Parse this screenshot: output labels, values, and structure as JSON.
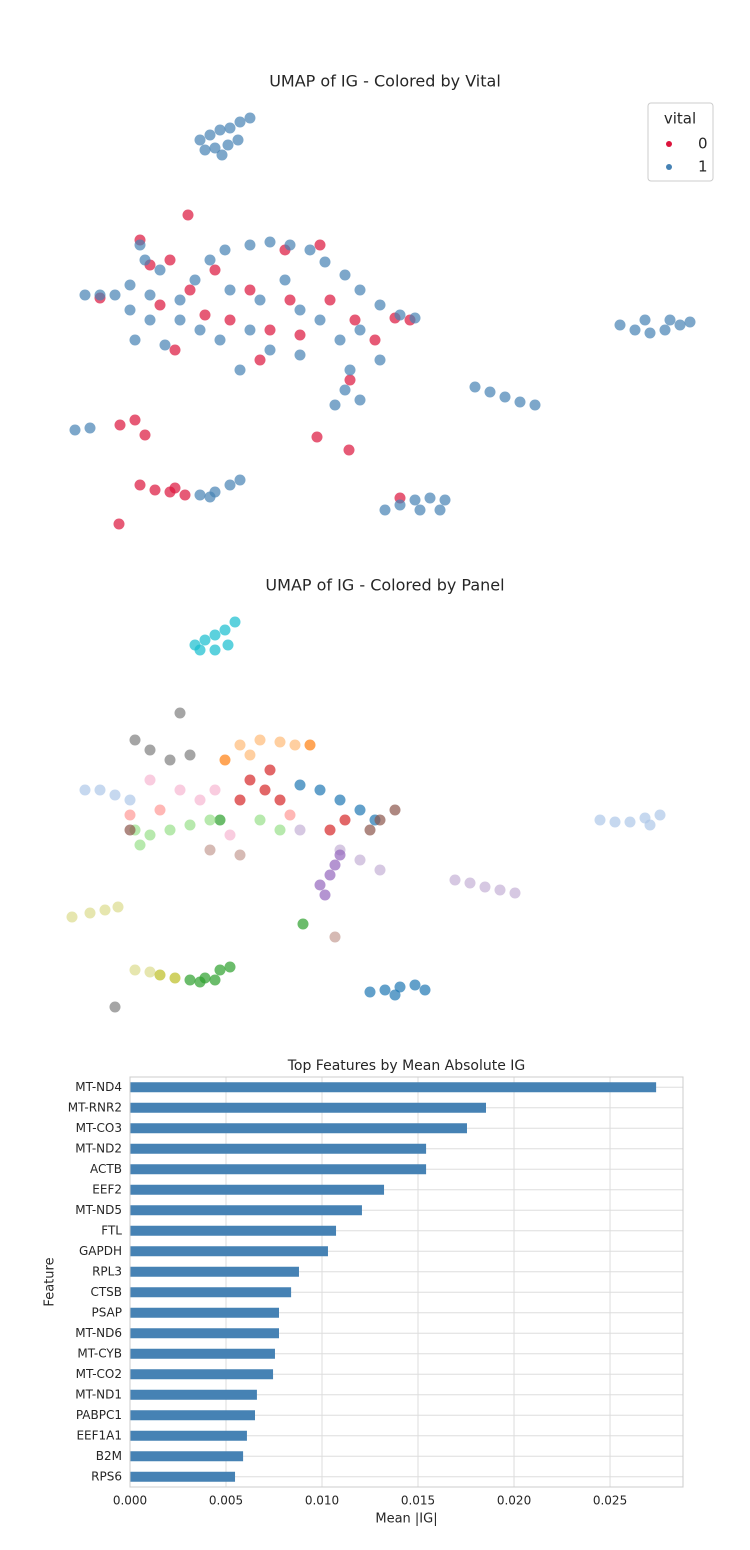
{
  "chart_data": [
    {
      "type": "scatter",
      "title": "UMAP of IG - Colored by Vital",
      "legend_title": "vital",
      "legend": "upper right",
      "xlim": [
        60,
        700
      ],
      "ylim": [
        550,
        100
      ],
      "series": [
        {
          "name": "0",
          "color": "#dc143c",
          "x": [
            188,
            140,
            150,
            170,
            190,
            205,
            175,
            230,
            250,
            270,
            290,
            285,
            320,
            300,
            330,
            355,
            375,
            395,
            410,
            260,
            350,
            215,
            160,
            100,
            120,
            135,
            145,
            317,
            349,
            140,
            155,
            170,
            185,
            175,
            400,
            119
          ],
          "y": [
            215,
            240,
            265,
            260,
            290,
            315,
            350,
            320,
            290,
            330,
            300,
            250,
            245,
            335,
            300,
            320,
            340,
            318,
            320,
            360,
            380,
            270,
            305,
            298,
            425,
            420,
            435,
            437,
            450,
            485,
            490,
            492,
            495,
            488,
            498,
            524
          ]
        },
        {
          "name": "1",
          "color": "#4682b4",
          "x": [
            200,
            210,
            220,
            230,
            240,
            250,
            205,
            215,
            228,
            238,
            222,
            85,
            100,
            115,
            130,
            145,
            140,
            160,
            150,
            135,
            165,
            180,
            195,
            210,
            225,
            250,
            270,
            290,
            310,
            325,
            345,
            360,
            380,
            400,
            415,
            230,
            260,
            285,
            300,
            320,
            250,
            270,
            300,
            340,
            360,
            220,
            240,
            350,
            345,
            360,
            335,
            380,
            200,
            180,
            130,
            150,
            620,
            635,
            650,
            665,
            680,
            690,
            645,
            670,
            475,
            490,
            505,
            520,
            535,
            75,
            90,
            200,
            215,
            230,
            240,
            210,
            385,
            400,
            415,
            430,
            445,
            420,
            440
          ],
          "y": [
            140,
            135,
            130,
            128,
            122,
            118,
            150,
            148,
            145,
            140,
            155,
            295,
            295,
            295,
            285,
            260,
            245,
            270,
            320,
            340,
            345,
            300,
            280,
            260,
            250,
            245,
            242,
            245,
            250,
            262,
            275,
            290,
            305,
            315,
            318,
            290,
            300,
            280,
            310,
            320,
            330,
            350,
            355,
            340,
            330,
            340,
            370,
            370,
            390,
            400,
            405,
            360,
            330,
            320,
            310,
            295,
            325,
            330,
            333,
            330,
            325,
            322,
            320,
            320,
            387,
            392,
            397,
            402,
            405,
            430,
            428,
            495,
            492,
            485,
            480,
            497,
            510,
            505,
            500,
            498,
            500,
            510,
            510
          ]
        }
      ]
    },
    {
      "type": "scatter",
      "title": "UMAP of IG - Colored by Panel",
      "xlim": [
        60,
        700
      ],
      "ylim": [
        550,
        100
      ],
      "series": [
        {
          "color": "#17becf",
          "x": [
            195,
            205,
            215,
            225,
            235,
            200,
            215,
            228
          ],
          "y": [
            150,
            145,
            140,
            135,
            127,
            155,
            155,
            150
          ]
        },
        {
          "color": "#aec7e8",
          "x": [
            600,
            615,
            630,
            645,
            660,
            650,
            85,
            100,
            115,
            130
          ],
          "y": [
            325,
            327,
            327,
            323,
            320,
            330,
            295,
            295,
            300,
            305
          ]
        },
        {
          "color": "#c5b0d5",
          "x": [
            455,
            470,
            485,
            500,
            515,
            340,
            360,
            380,
            300
          ],
          "y": [
            385,
            388,
            392,
            395,
            398,
            355,
            365,
            375,
            335
          ]
        },
        {
          "color": "#dbdb8d",
          "x": [
            72,
            90,
            105,
            118,
            135,
            150
          ],
          "y": [
            422,
            418,
            415,
            412,
            475,
            477
          ]
        },
        {
          "color": "#bcbd22",
          "x": [
            160,
            175
          ],
          "y": [
            480,
            483
          ]
        },
        {
          "color": "#2ca02c",
          "x": [
            190,
            205,
            220,
            230,
            200,
            215,
            303,
            220
          ],
          "y": [
            485,
            483,
            475,
            472,
            487,
            485,
            429,
            325
          ]
        },
        {
          "color": "#1f77b4",
          "x": [
            370,
            385,
            400,
            415,
            425,
            395,
            300,
            320,
            340,
            360,
            375
          ],
          "y": [
            497,
            495,
            492,
            490,
            495,
            500,
            290,
            295,
            305,
            315,
            325
          ]
        },
        {
          "color": "#7f7f7f",
          "x": [
            135,
            150,
            170,
            180,
            115,
            190
          ],
          "y": [
            245,
            255,
            265,
            218,
            512,
            260
          ]
        },
        {
          "color": "#ffbb78",
          "x": [
            240,
            260,
            280,
            295,
            250
          ],
          "y": [
            250,
            245,
            247,
            250,
            260
          ]
        },
        {
          "color": "#ff7f0e",
          "x": [
            310,
            225
          ],
          "y": [
            250,
            265
          ]
        },
        {
          "color": "#d62728",
          "x": [
            250,
            265,
            280,
            270,
            240,
            330,
            345
          ],
          "y": [
            285,
            295,
            305,
            275,
            305,
            335,
            325
          ]
        },
        {
          "color": "#f7b6d2",
          "x": [
            150,
            180,
            200,
            215,
            230
          ],
          "y": [
            285,
            295,
            305,
            295,
            340
          ]
        },
        {
          "color": "#98df8a",
          "x": [
            135,
            150,
            170,
            190,
            210,
            260,
            280,
            140
          ],
          "y": [
            335,
            340,
            335,
            330,
            325,
            325,
            335,
            350
          ]
        },
        {
          "color": "#9467bd",
          "x": [
            320,
            330,
            335,
            340,
            325
          ],
          "y": [
            390,
            380,
            370,
            360,
            400
          ]
        },
        {
          "color": "#8c564b",
          "x": [
            380,
            395,
            370,
            130
          ],
          "y": [
            325,
            315,
            335,
            335
          ]
        },
        {
          "color": "#c49c94",
          "x": [
            210,
            335,
            240
          ],
          "y": [
            355,
            442,
            360
          ]
        },
        {
          "color": "#ff9896",
          "x": [
            130,
            160,
            290
          ],
          "y": [
            320,
            315,
            320
          ]
        }
      ]
    },
    {
      "type": "barh",
      "title": "Top Features by Mean Absolute IG",
      "xlabel": "Mean |IG|",
      "ylabel": "Feature",
      "color": "#4682b4",
      "grid": true,
      "categories": [
        "MT-ND4",
        "MT-RNR2",
        "MT-CO3",
        "MT-ND2",
        "ACTB",
        "EEF2",
        "MT-ND5",
        "FTL",
        "GAPDH",
        "RPL3",
        "CTSB",
        "PSAP",
        "MT-ND6",
        "MT-CYB",
        "MT-CO2",
        "MT-ND1",
        "PABPC1",
        "EEF1A1",
        "B2M",
        "RPS6"
      ],
      "values": [
        0.0274,
        0.01854,
        0.01755,
        0.01542,
        0.01542,
        0.01323,
        0.01208,
        0.01073,
        0.01031,
        0.0088,
        0.00839,
        0.00776,
        0.00776,
        0.00755,
        0.00745,
        0.00661,
        0.00651,
        0.00609,
        0.00589,
        0.00547
      ],
      "xlim": [
        0,
        0.0288
      ],
      "xticks": [
        {
          "value": 0,
          "label": "0.000"
        },
        0.005,
        {
          "value": 0.01,
          "label": "0.010"
        },
        0.015,
        {
          "value": 0.02,
          "label": "0.020"
        },
        0.025
      ]
    }
  ]
}
